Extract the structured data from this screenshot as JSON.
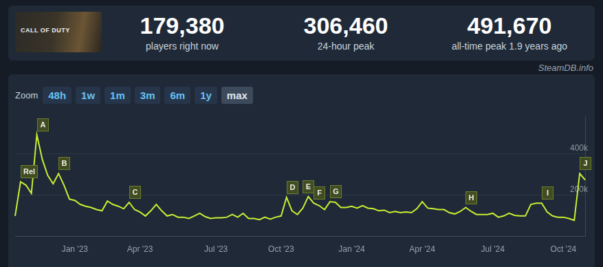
{
  "header": {
    "thumbnail_text": "CALL OF DUTY",
    "stats": [
      {
        "value": "179,380",
        "label": "players right now"
      },
      {
        "value": "306,460",
        "label": "24-hour peak"
      },
      {
        "value": "491,670",
        "label": "all-time peak 1.9 years ago"
      }
    ]
  },
  "watermark": "SteamDB.info",
  "zoom": {
    "label": "Zoom",
    "options": [
      "48h",
      "1w",
      "1m",
      "3m",
      "6m",
      "1y",
      "max"
    ],
    "active": "max"
  },
  "chart_data": {
    "type": "line",
    "categories": [
      null,
      null,
      null,
      null,
      null,
      null,
      null,
      null,
      null,
      null,
      null,
      "Jan '23",
      null,
      null,
      null,
      null,
      null,
      null,
      null,
      null,
      null,
      null,
      null,
      "Apr '23",
      null,
      null,
      null,
      null,
      null,
      null,
      null,
      null,
      null,
      null,
      null,
      null,
      null,
      "Jul '23",
      null,
      null,
      null,
      null,
      null,
      null,
      null,
      null,
      null,
      null,
      null,
      "Oct '23",
      null,
      null,
      null,
      null,
      null,
      null,
      null,
      null,
      null,
      null,
      null,
      null,
      "Jan '24",
      null,
      null,
      null,
      null,
      null,
      null,
      null,
      null,
      null,
      null,
      null,
      null,
      "Apr '24",
      null,
      null,
      null,
      null,
      null,
      null,
      null,
      null,
      null,
      null,
      null,
      null,
      "Jul '24",
      null,
      null,
      null,
      null,
      null,
      null,
      null,
      null,
      null,
      null,
      null,
      null,
      "Oct '24",
      null,
      null,
      null,
      null
    ],
    "values": [
      99000,
      264000,
      248000,
      208000,
      491670,
      373000,
      295000,
      255000,
      304000,
      248000,
      180000,
      174000,
      155000,
      146000,
      140000,
      130000,
      124000,
      171000,
      155000,
      146000,
      134000,
      165000,
      130000,
      118000,
      99000,
      124000,
      155000,
      124000,
      99000,
      106000,
      93000,
      93000,
      87000,
      99000,
      112000,
      96000,
      87000,
      90000,
      90000,
      93000,
      106000,
      93000,
      112000,
      87000,
      87000,
      81000,
      93000,
      84000,
      93000,
      99000,
      189000,
      124000,
      106000,
      137000,
      193000,
      161000,
      149000,
      130000,
      168000,
      165000,
      140000,
      140000,
      146000,
      137000,
      149000,
      137000,
      134000,
      124000,
      127000,
      115000,
      121000,
      115000,
      118000,
      115000,
      134000,
      168000,
      137000,
      134000,
      130000,
      130000,
      115000,
      109000,
      121000,
      140000,
      121000,
      106000,
      106000,
      106000,
      112000,
      93000,
      99000,
      112000,
      102000,
      99000,
      99000,
      155000,
      161000,
      161000,
      118000,
      99000,
      93000,
      93000,
      87000,
      78000,
      304000,
      273000
    ],
    "color": "#c9ef34",
    "ylim": [
      0,
      580000
    ],
    "yticks": [
      {
        "value": 200000,
        "label": "200k"
      },
      {
        "value": 400000,
        "label": "400k"
      }
    ],
    "grid": true,
    "annotations": [
      {
        "label": "Rel",
        "at": 1
      },
      {
        "label": "A",
        "at": 4
      },
      {
        "label": "B",
        "at": 8
      },
      {
        "label": "C",
        "at": 21
      },
      {
        "label": "D",
        "at": 50
      },
      {
        "label": "E",
        "at": 53
      },
      {
        "label": "F",
        "at": 55
      },
      {
        "label": "G",
        "at": 58
      },
      {
        "label": "H",
        "at": 83
      },
      {
        "label": "I",
        "at": 97
      },
      {
        "label": "J",
        "at": 104
      }
    ]
  }
}
